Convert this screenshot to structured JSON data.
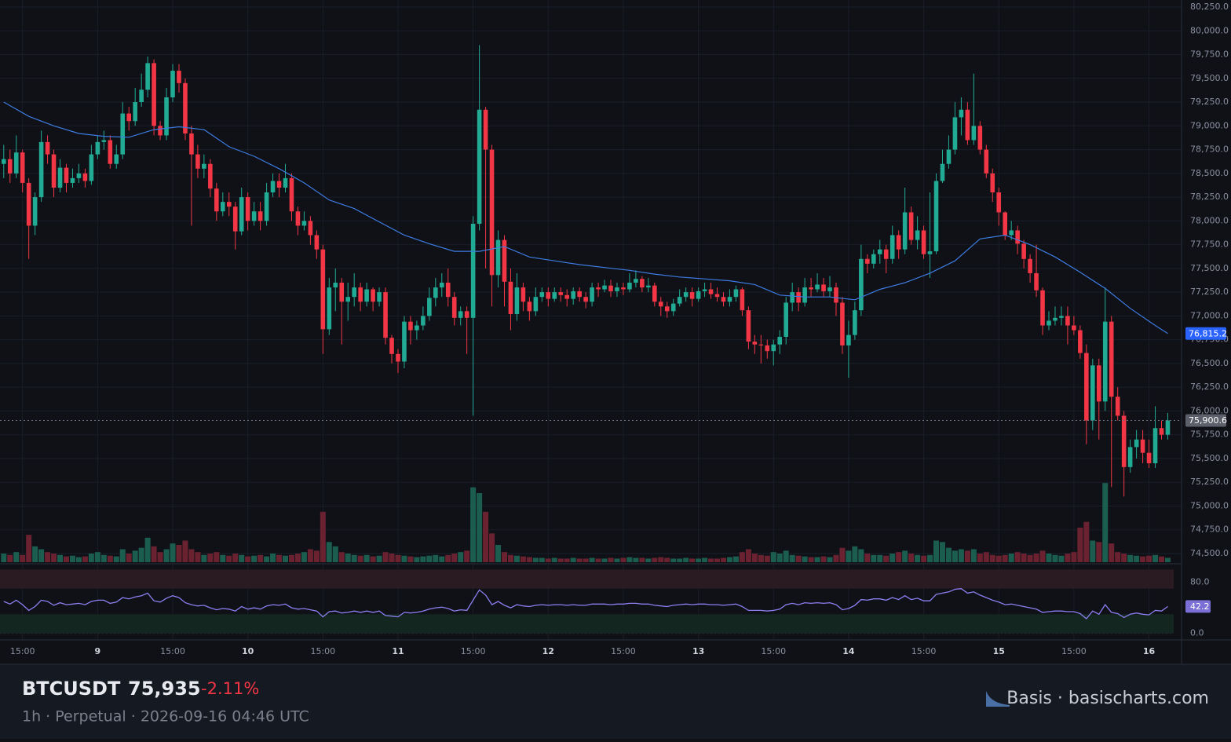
{
  "chart_data": {
    "type": "candlestick",
    "up_color": "#22ab94",
    "down_color": "#f23645",
    "vol_up_color": "#1b5e4f",
    "vol_down_color": "#6b2230",
    "xlim": [
      -0.6,
      188.2
    ],
    "xticks": [
      {
        "value": 3,
        "label": "15:00"
      },
      {
        "value": 15,
        "label": "9"
      },
      {
        "value": 27,
        "label": "15:00"
      },
      {
        "value": 39,
        "label": "10"
      },
      {
        "value": 51,
        "label": "15:00"
      },
      {
        "value": 63,
        "label": "11"
      },
      {
        "value": 75,
        "label": "15:00"
      },
      {
        "value": 87,
        "label": "12"
      },
      {
        "value": 99,
        "label": "15:00"
      },
      {
        "value": 111,
        "label": "13"
      },
      {
        "value": 123,
        "label": "15:00"
      },
      {
        "value": 135,
        "label": "14"
      },
      {
        "value": 147,
        "label": "15:00"
      },
      {
        "value": 159,
        "label": "15"
      },
      {
        "value": 171,
        "label": "15:00"
      },
      {
        "value": 183,
        "label": "16"
      }
    ],
    "ylim": [
      74500,
      80250
    ],
    "yticks": [
      {
        "value": 74500,
        "label": "74,500.0"
      },
      {
        "value": 74750,
        "label": "74,750.0"
      },
      {
        "value": 75000,
        "label": "75,000.0"
      },
      {
        "value": 75250,
        "label": "75,250.0"
      },
      {
        "value": 75500,
        "label": "75,500.0"
      },
      {
        "value": 75750,
        "label": "75,750.0"
      },
      {
        "value": 76000,
        "label": "76,000.0"
      },
      {
        "value": 76250,
        "label": "76,250.0"
      },
      {
        "value": 76500,
        "label": "76,500.0"
      },
      {
        "value": 76750,
        "label": "76,750.0"
      },
      {
        "value": 77000,
        "label": "77,000.0"
      },
      {
        "value": 77250,
        "label": "77,250.0"
      },
      {
        "value": 77500,
        "label": "77,500.0"
      },
      {
        "value": 77750,
        "label": "77,750.0"
      },
      {
        "value": 78000,
        "label": "78,000.0"
      },
      {
        "value": 78250,
        "label": "78,250.0"
      },
      {
        "value": 78500,
        "label": "78,500.0"
      },
      {
        "value": 78750,
        "label": "78,750.0"
      },
      {
        "value": 79000,
        "label": "79,000.0"
      },
      {
        "value": 79250,
        "label": "79,250.0"
      },
      {
        "value": 79500,
        "label": "79,500.0"
      },
      {
        "value": 79750,
        "label": "79,750.0"
      },
      {
        "value": 80000,
        "label": "80,000.0"
      },
      {
        "value": 80250,
        "label": "80,250.0"
      }
    ],
    "open": [
      78600,
      78650,
      78500,
      78720,
      78400,
      77950,
      78250,
      78830,
      78700,
      78350,
      78560,
      78400,
      78450,
      78500,
      78420,
      78700,
      78830,
      78850,
      78600,
      78700,
      79130,
      79050,
      79250,
      79380,
      79660,
      79000,
      78900,
      79300,
      79580,
      79450,
      78920,
      78700,
      78550,
      78600,
      78340,
      78100,
      78200,
      78150,
      77890,
      78250,
      78000,
      78100,
      78000,
      78300,
      78420,
      78350,
      78450,
      78100,
      77950,
      78000,
      77850,
      77700,
      76860,
      77300,
      77350,
      77150,
      77200,
      77300,
      77150,
      77280,
      77150,
      77250,
      76770,
      76600,
      76520,
      76940,
      76850,
      76900,
      77000,
      77190,
      77300,
      77350,
      77200,
      76980,
      77050,
      76980,
      77970,
      79170,
      78750,
      77430,
      77800,
      77360,
      77020,
      77300,
      77150,
      77050,
      77200,
      77250,
      77180,
      77250,
      77220,
      77180,
      77260,
      77200,
      77150,
      77300,
      77280,
      77320,
      77260,
      77300,
      77280,
      77350,
      77390,
      77300,
      77320,
      77150,
      77100,
      77050,
      77130,
      77200,
      77250,
      77180,
      77260,
      77280,
      77230,
      77200,
      77150,
      77200,
      77280,
      77060,
      76730,
      76700,
      76690,
      76630,
      76700,
      76780,
      77140,
      77250,
      77140,
      77300,
      77280,
      77330,
      77260,
      77300,
      77140,
      76690,
      76800,
      77060,
      77600,
      77550,
      77650,
      77700,
      77600,
      77850,
      77700,
      78090,
      77800,
      77900,
      77650,
      77680,
      78420,
      78600,
      78750,
      79090,
      79170,
      78850,
      79000,
      78750,
      78500,
      78300,
      78090,
      77850,
      77900,
      77760,
      77600,
      77450,
      77270,
      76900,
      76950,
      76980,
      77000,
      76900,
      76850,
      76610,
      75900,
      76480,
      76100,
      76940,
      76150,
      75950,
      75410,
      75620,
      75700,
      75560,
      75450,
      75820,
      75750
    ],
    "high": [
      78800,
      78750,
      78900,
      78750,
      78450,
      78300,
      78950,
      78900,
      78750,
      78650,
      78600,
      78550,
      78600,
      78550,
      78800,
      78900,
      78950,
      78900,
      78800,
      79250,
      79200,
      79400,
      79550,
      79730,
      79700,
      79050,
      79400,
      79650,
      79650,
      79500,
      79000,
      78800,
      78700,
      78650,
      78400,
      78300,
      78300,
      78200,
      78350,
      78300,
      78200,
      78200,
      78400,
      78500,
      78500,
      78600,
      78500,
      78150,
      78100,
      78050,
      77900,
      77750,
      77400,
      77500,
      77400,
      77350,
      77450,
      77350,
      77350,
      77300,
      77300,
      77300,
      76800,
      76650,
      77000,
      77000,
      76950,
      77100,
      77300,
      77400,
      77450,
      77500,
      77250,
      77100,
      77100,
      78050,
      79850,
      79200,
      78800,
      77900,
      77850,
      77500,
      77450,
      77350,
      77200,
      77300,
      77300,
      77300,
      77300,
      77300,
      77280,
      77300,
      77300,
      77250,
      77350,
      77350,
      77380,
      77380,
      77350,
      77350,
      77450,
      77480,
      77420,
      77400,
      77350,
      77200,
      77150,
      77180,
      77280,
      77300,
      77300,
      77300,
      77350,
      77350,
      77300,
      77250,
      77280,
      77320,
      77300,
      77100,
      76800,
      76800,
      76750,
      76750,
      76850,
      77200,
      77350,
      77300,
      77400,
      77400,
      77450,
      77400,
      77420,
      77350,
      77200,
      76950,
      77150,
      77750,
      77650,
      77700,
      77800,
      77750,
      77950,
      77900,
      78350,
      78150,
      78050,
      77950,
      78300,
      78500,
      78750,
      78900,
      79250,
      79300,
      79250,
      79550,
      79050,
      78800,
      78550,
      78350,
      78100,
      78000,
      77950,
      77800,
      77650,
      77750,
      77300,
      77050,
      77100,
      77100,
      77100,
      77000,
      76900,
      76700,
      76550,
      76550,
      77300,
      77000,
      76250,
      76000,
      75700,
      75800,
      75800,
      75700,
      76050,
      75900,
      75980
    ],
    "low": [
      78450,
      78400,
      78450,
      78300,
      77600,
      77850,
      78200,
      78600,
      78250,
      78300,
      78300,
      78350,
      78400,
      78350,
      78380,
      78650,
      78750,
      78550,
      78550,
      78650,
      78950,
      79000,
      79200,
      79300,
      78900,
      78850,
      78850,
      79250,
      79350,
      78850,
      77950,
      78450,
      78450,
      78250,
      78000,
      78050,
      78050,
      77700,
      77850,
      77900,
      77950,
      77900,
      77950,
      78250,
      78250,
      78300,
      78000,
      77850,
      77900,
      77750,
      77600,
      76600,
      76800,
      77050,
      76700,
      76950,
      77100,
      77050,
      77100,
      77050,
      77100,
      76700,
      76500,
      76400,
      76450,
      76700,
      76750,
      76850,
      76950,
      77100,
      77200,
      77100,
      76900,
      76900,
      76600,
      75950,
      77900,
      77500,
      77100,
      77300,
      77100,
      76850,
      76950,
      77050,
      76950,
      77000,
      77150,
      77100,
      77150,
      77150,
      77100,
      77120,
      77150,
      77080,
      77100,
      77200,
      77250,
      77200,
      77200,
      77220,
      77250,
      77300,
      77250,
      77250,
      77100,
      77000,
      76980,
      77000,
      77100,
      77150,
      77100,
      77150,
      77200,
      77180,
      77150,
      77100,
      77100,
      77150,
      77000,
      76650,
      76600,
      76500,
      76550,
      76480,
      76600,
      76700,
      77050,
      77050,
      77100,
      77200,
      77250,
      77200,
      77200,
      77000,
      76600,
      76350,
      76750,
      77000,
      77450,
      77500,
      77550,
      77450,
      77550,
      77600,
      77650,
      77750,
      77700,
      77600,
      77400,
      77650,
      78400,
      78550,
      78700,
      78900,
      78800,
      78800,
      78700,
      78450,
      78200,
      77950,
      77800,
      77800,
      77650,
      77500,
      77350,
      77200,
      76800,
      76850,
      76900,
      76900,
      76700,
      76800,
      76550,
      75650,
      75800,
      75700,
      76000,
      75200,
      75900,
      75100,
      75350,
      75500,
      75450,
      75400,
      75400,
      75700,
      75700
    ],
    "close": [
      78650,
      78500,
      78720,
      78400,
      77950,
      78250,
      78830,
      78700,
      78350,
      78560,
      78400,
      78450,
      78500,
      78420,
      78700,
      78830,
      78850,
      78600,
      78700,
      79130,
      79050,
      79250,
      79380,
      79660,
      79000,
      78900,
      79300,
      79580,
      79450,
      78920,
      78700,
      78550,
      78600,
      78340,
      78100,
      78200,
      78150,
      77890,
      78250,
      78000,
      78100,
      78000,
      78300,
      78420,
      78350,
      78450,
      78100,
      77950,
      78000,
      77850,
      77700,
      76860,
      77300,
      77350,
      77150,
      77200,
      77300,
      77150,
      77280,
      77150,
      77250,
      76770,
      76600,
      76520,
      76940,
      76850,
      76900,
      77000,
      77190,
      77300,
      77350,
      77200,
      76980,
      77050,
      76980,
      77970,
      79170,
      78750,
      77430,
      77800,
      77360,
      77020,
      77300,
      77150,
      77050,
      77200,
      77250,
      77180,
      77250,
      77220,
      77180,
      77260,
      77200,
      77150,
      77300,
      77280,
      77320,
      77260,
      77300,
      77280,
      77350,
      77390,
      77300,
      77320,
      77150,
      77100,
      77050,
      77130,
      77200,
      77250,
      77180,
      77260,
      77280,
      77230,
      77200,
      77150,
      77200,
      77280,
      77060,
      76730,
      76700,
      76690,
      76630,
      76700,
      76780,
      77140,
      77250,
      77140,
      77300,
      77280,
      77330,
      77260,
      77300,
      77140,
      76690,
      76800,
      77060,
      77600,
      77550,
      77650,
      77700,
      77600,
      77850,
      77700,
      78090,
      77800,
      77900,
      77650,
      77680,
      78420,
      78600,
      78750,
      79090,
      79170,
      78850,
      79000,
      78750,
      78500,
      78300,
      78090,
      77850,
      77900,
      77760,
      77600,
      77450,
      77270,
      76900,
      76950,
      76980,
      77000,
      76900,
      76850,
      76610,
      75900,
      76480,
      76100,
      76940,
      76150,
      75950,
      75410,
      75620,
      75700,
      75560,
      75450,
      75820,
      75750,
      75900.6
    ],
    "vlim": [
      0,
      120
    ],
    "volume": [
      12,
      10,
      14,
      10,
      38,
      22,
      18,
      14,
      12,
      10,
      8,
      9,
      7,
      8,
      12,
      14,
      10,
      9,
      8,
      18,
      12,
      16,
      20,
      34,
      22,
      14,
      18,
      26,
      24,
      30,
      18,
      14,
      10,
      12,
      14,
      10,
      9,
      12,
      10,
      8,
      9,
      10,
      8,
      12,
      10,
      9,
      10,
      12,
      14,
      18,
      16,
      70,
      28,
      22,
      14,
      12,
      10,
      9,
      10,
      8,
      9,
      14,
      12,
      10,
      9,
      8,
      7,
      8,
      9,
      10,
      8,
      10,
      12,
      14,
      16,
      104,
      96,
      70,
      40,
      24,
      14,
      10,
      9,
      8,
      7,
      6,
      6,
      5,
      6,
      5,
      5,
      6,
      5,
      5,
      6,
      5,
      5,
      6,
      5,
      6,
      7,
      6,
      6,
      5,
      6,
      7,
      6,
      5,
      5,
      6,
      5,
      5,
      6,
      5,
      5,
      6,
      7,
      8,
      14,
      18,
      12,
      10,
      9,
      14,
      12,
      16,
      10,
      9,
      8,
      7,
      7,
      8,
      7,
      10,
      20,
      16,
      22,
      18,
      12,
      10,
      10,
      9,
      12,
      14,
      16,
      12,
      10,
      9,
      10,
      30,
      28,
      20,
      16,
      18,
      16,
      18,
      12,
      14,
      10,
      9,
      10,
      12,
      14,
      12,
      10,
      12,
      16,
      12,
      10,
      9,
      12,
      14,
      48,
      56,
      30,
      28,
      110,
      26,
      14,
      12,
      10,
      9,
      8,
      9,
      10,
      8,
      6
    ],
    "ma": {
      "color": "#3d7be0",
      "x": [
        0,
        4,
        8,
        12,
        16,
        20,
        24,
        28,
        32,
        36,
        40,
        44,
        48,
        52,
        56,
        60,
        64,
        68,
        72,
        76,
        80,
        84,
        88,
        92,
        96,
        100,
        104,
        108,
        112,
        116,
        120,
        124,
        128,
        132,
        136,
        140,
        144,
        148,
        152,
        156,
        160,
        164,
        168,
        172,
        176,
        180,
        184,
        186
      ],
      "values": [
        79250,
        79100,
        79000,
        78920,
        78890,
        78880,
        78960,
        78990,
        78960,
        78780,
        78680,
        78550,
        78400,
        78220,
        78130,
        77990,
        77850,
        77760,
        77680,
        77680,
        77730,
        77620,
        77580,
        77540,
        77510,
        77480,
        77440,
        77410,
        77390,
        77370,
        77330,
        77220,
        77200,
        77200,
        77170,
        77280,
        77350,
        77450,
        77580,
        77810,
        77850,
        77750,
        77620,
        77460,
        77290,
        77080,
        76900,
        76815.2
      ]
    },
    "price_labels": [
      {
        "value": 76815.2,
        "label": "76,815.2",
        "color": "#2962ff"
      },
      {
        "value": 75900.6,
        "label": "75,900.6",
        "color": "#5d606b"
      }
    ],
    "rsi": {
      "color": "#8c7ff0",
      "ylim": [
        -4,
        104
      ],
      "yticks": [
        {
          "value": 80,
          "label": "80.0"
        },
        {
          "value": 0,
          "label": "0.0"
        }
      ],
      "bands": [
        {
          "range": [
            70,
            100
          ],
          "color": "#2a1a22"
        },
        {
          "range": [
            0,
            30
          ],
          "color": "#142620"
        }
      ],
      "values": [
        50,
        46,
        52,
        45,
        36,
        42,
        52,
        50,
        44,
        48,
        45,
        46,
        47,
        45,
        50,
        52,
        52,
        47,
        49,
        56,
        54,
        57,
        59,
        63,
        51,
        49,
        55,
        59,
        56,
        48,
        45,
        43,
        44,
        40,
        37,
        39,
        38,
        35,
        42,
        38,
        40,
        38,
        43,
        45,
        44,
        46,
        40,
        38,
        39,
        37,
        35,
        26,
        34,
        35,
        32,
        33,
        35,
        33,
        35,
        33,
        35,
        28,
        27,
        26,
        33,
        32,
        33,
        35,
        38,
        40,
        41,
        39,
        35,
        37,
        36,
        52,
        68,
        60,
        45,
        50,
        44,
        40,
        45,
        43,
        42,
        44,
        45,
        44,
        45,
        45,
        44,
        45,
        44,
        44,
        46,
        46,
        46,
        45,
        46,
        46,
        47,
        47,
        46,
        46,
        44,
        43,
        42,
        44,
        45,
        46,
        45,
        46,
        46,
        45,
        45,
        44,
        45,
        46,
        42,
        36,
        36,
        36,
        35,
        36,
        38,
        45,
        47,
        45,
        48,
        47,
        48,
        47,
        48,
        45,
        37,
        39,
        44,
        53,
        52,
        54,
        54,
        52,
        56,
        53,
        59,
        53,
        55,
        51,
        51,
        61,
        63,
        65,
        69,
        70,
        63,
        65,
        60,
        56,
        52,
        49,
        45,
        46,
        44,
        42,
        40,
        38,
        33,
        34,
        35,
        35,
        34,
        34,
        31,
        23,
        35,
        30,
        45,
        33,
        31,
        25,
        30,
        32,
        30,
        29,
        36,
        35,
        42.2
      ],
      "last_label": 42.2
    }
  },
  "footer": {
    "symbol": "BTCUSDT",
    "price": "75,935",
    "change": "-2.11%",
    "info": "1h · Perpetual · 2026-09-16 04:46 UTC",
    "brand": "Basis · basischarts.com"
  }
}
